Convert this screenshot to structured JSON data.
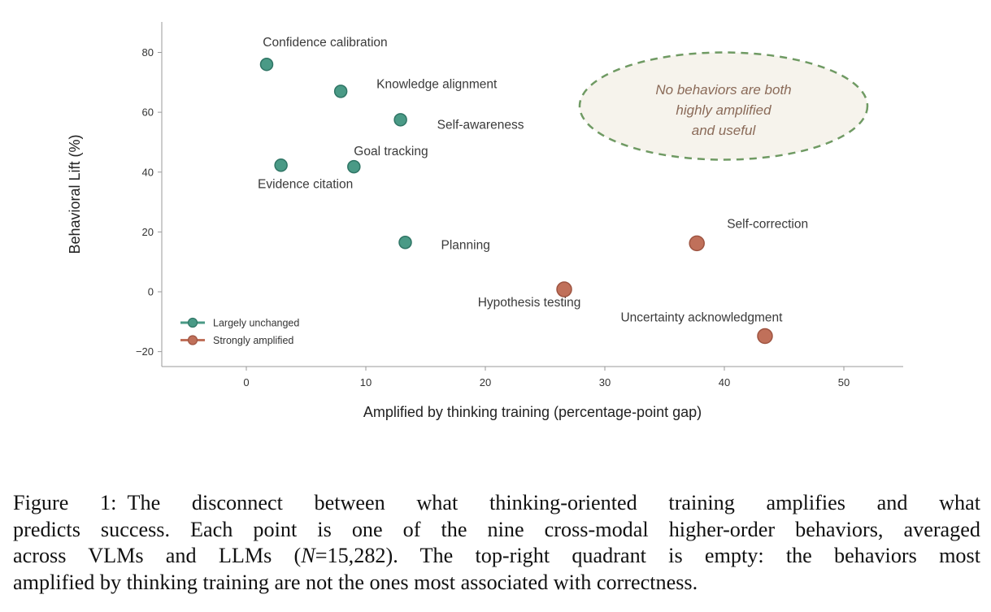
{
  "chart_data": {
    "type": "scatter",
    "title": "",
    "xlabel": "Amplified by thinking training (percentage-point gap)",
    "ylabel": "Behavioral Lift (%)",
    "xlim": [
      -7,
      55
    ],
    "ylim": [
      -25,
      90
    ],
    "xticks": [
      0,
      10,
      20,
      30,
      40,
      50
    ],
    "yticks": [
      -20,
      0,
      20,
      40,
      60,
      80
    ],
    "xtick_labels": [
      "0",
      "10",
      "20",
      "30",
      "40",
      "50"
    ],
    "ytick_labels": [
      "−20",
      "0",
      "20",
      "40",
      "60",
      "80"
    ],
    "grid": false,
    "legend_position": "bottom-left",
    "series": [
      {
        "name": "Largely unchanged",
        "color": "#4a9a86",
        "points": [
          {
            "label": "Confidence calibration",
            "x": 1.7,
            "y": 76
          },
          {
            "label": "Knowledge alignment",
            "x": 7.9,
            "y": 67
          },
          {
            "label": "Self-awareness",
            "x": 12.9,
            "y": 57.5
          },
          {
            "label": "Goal tracking",
            "x": 9.0,
            "y": 41.8
          },
          {
            "label": "Evidence citation",
            "x": 2.9,
            "y": 42.3
          },
          {
            "label": "Planning",
            "x": 13.3,
            "y": 16.5
          }
        ]
      },
      {
        "name": "Strongly amplified",
        "color": "#c0705a",
        "points": [
          {
            "label": "Self-correction",
            "x": 37.7,
            "y": 16.2
          },
          {
            "label": "Hypothesis testing",
            "x": 26.6,
            "y": 0.8
          },
          {
            "label": "Uncertainty acknowledgment",
            "x": 43.4,
            "y": -14.8
          }
        ]
      }
    ],
    "annotations": [
      {
        "text": [
          "No behaviors are both",
          "highly amplified",
          "and useful"
        ],
        "region": "top-right"
      }
    ]
  },
  "caption": {
    "line1": "Figure 1: The disconnect between what thinking-oriented training amplifies and what",
    "line2": "predicts success. Each point is one of the nine cross-modal higher-order behaviors, averaged",
    "line3_pre": "across VLMs and LLMs (",
    "line3_n": "N",
    "line3_post": "=15,282). The top-right quadrant is empty: the behaviors most",
    "line4": "amplified by thinking training are not the ones most associated with correctness."
  }
}
